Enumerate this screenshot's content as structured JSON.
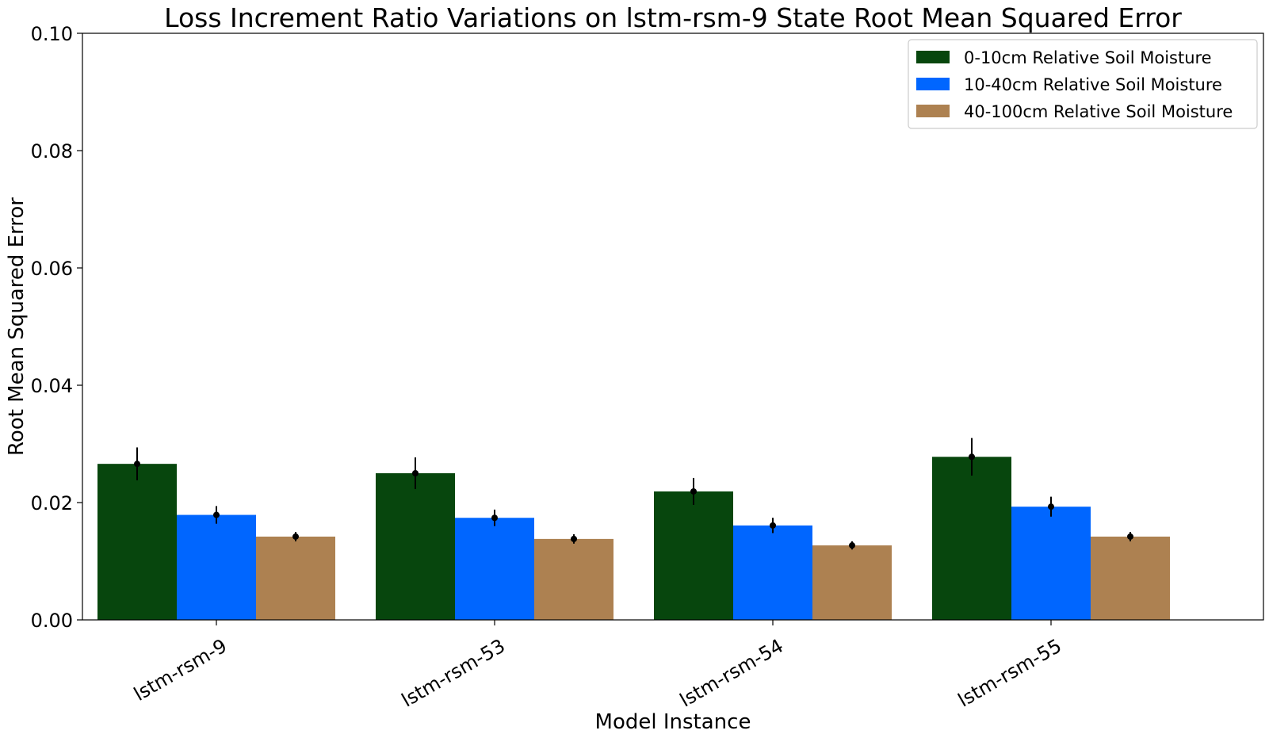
{
  "chart_data": {
    "type": "bar",
    "title": "Loss Increment Ratio Variations on lstm-rsm-9 State Root Mean Squared Error",
    "xlabel": "Model Instance",
    "ylabel": "Root Mean Squared Error",
    "categories": [
      "lstm-rsm-9",
      "lstm-rsm-53",
      "lstm-rsm-54",
      "lstm-rsm-55"
    ],
    "series": [
      {
        "name": "0-10cm Relative Soil Moisture",
        "color": "#07460d",
        "values": [
          0.0266,
          0.025,
          0.0219,
          0.0278
        ],
        "errors": [
          0.0028,
          0.0027,
          0.0023,
          0.0032
        ]
      },
      {
        "name": "10-40cm Relative Soil Moisture",
        "color": "#0066ff",
        "values": [
          0.0179,
          0.0174,
          0.0161,
          0.0193
        ],
        "errors": [
          0.0015,
          0.0014,
          0.0013,
          0.0017
        ]
      },
      {
        "name": "40-100cm Relative Soil Moisture",
        "color": "#ad8151",
        "values": [
          0.0142,
          0.0138,
          0.0127,
          0.0142
        ],
        "errors": [
          0.0008,
          0.0008,
          0.0007,
          0.0008
        ]
      }
    ],
    "ylim": [
      0,
      0.1
    ],
    "yticks": [
      "0.00",
      "0.02",
      "0.04",
      "0.06",
      "0.08",
      "0.10"
    ],
    "grid": false,
    "legend_position": "top-right",
    "xtick_rotation": "rotated"
  }
}
